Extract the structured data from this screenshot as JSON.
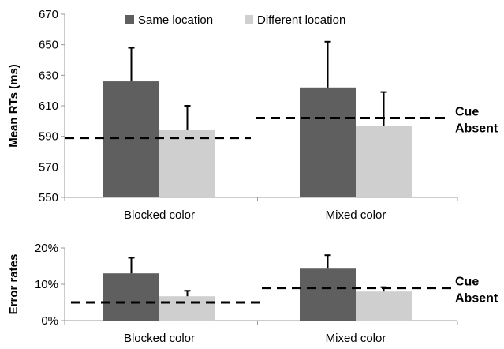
{
  "colors": {
    "series": [
      "#5f5f5f",
      "#cfcfcf"
    ],
    "axis": "#9a9a9a",
    "error_bar": "#000000",
    "dashed_line": "#000000",
    "text": "#000000"
  },
  "legend": {
    "items": [
      "Same location",
      "Different location"
    ]
  },
  "annotations": {
    "cue_absent_top": "Cue\nAbsent",
    "cue_absent_bottom": "Cue\nAbsent"
  },
  "chart_data": [
    {
      "type": "bar",
      "title": "",
      "xlabel": "",
      "ylabel": "Mean RTs (ms)",
      "categories": [
        "Blocked color",
        "Mixed color"
      ],
      "series": [
        {
          "name": "Same location",
          "values": [
            626,
            622
          ],
          "error": [
            22,
            30
          ]
        },
        {
          "name": "Different location",
          "values": [
            594,
            597
          ],
          "error": [
            16,
            22
          ]
        }
      ],
      "ylim": [
        550,
        670
      ],
      "yticks": [
        550,
        570,
        590,
        610,
        630,
        650,
        670
      ],
      "ytick_labels": [
        "550",
        "570",
        "590",
        "610",
        "630",
        "650",
        "670"
      ],
      "grid": false,
      "legend_position": "top-center",
      "baselines": [
        {
          "label": "Cue Absent",
          "category": "Blocked color",
          "value": 589
        },
        {
          "label": "Cue Absent",
          "category": "Mixed color",
          "value": 602
        }
      ]
    },
    {
      "type": "bar",
      "title": "",
      "xlabel": "",
      "ylabel": "Error rates",
      "categories": [
        "Blocked color",
        "Mixed color"
      ],
      "series": [
        {
          "name": "Same location",
          "values": [
            13,
            14.3
          ],
          "error": [
            4.3,
            3.7
          ]
        },
        {
          "name": "Different location",
          "values": [
            6.7,
            8
          ],
          "error": [
            1.5,
            1.2
          ]
        }
      ],
      "ylim": [
        0,
        20
      ],
      "yticks": [
        0,
        10,
        20
      ],
      "ytick_labels": [
        "0%",
        "10%",
        "20%"
      ],
      "grid": false,
      "baselines": [
        {
          "label": "Cue Absent",
          "category": "Blocked color",
          "value": 5
        },
        {
          "label": "Cue Absent",
          "category": "Mixed color",
          "value": 9
        }
      ]
    }
  ]
}
